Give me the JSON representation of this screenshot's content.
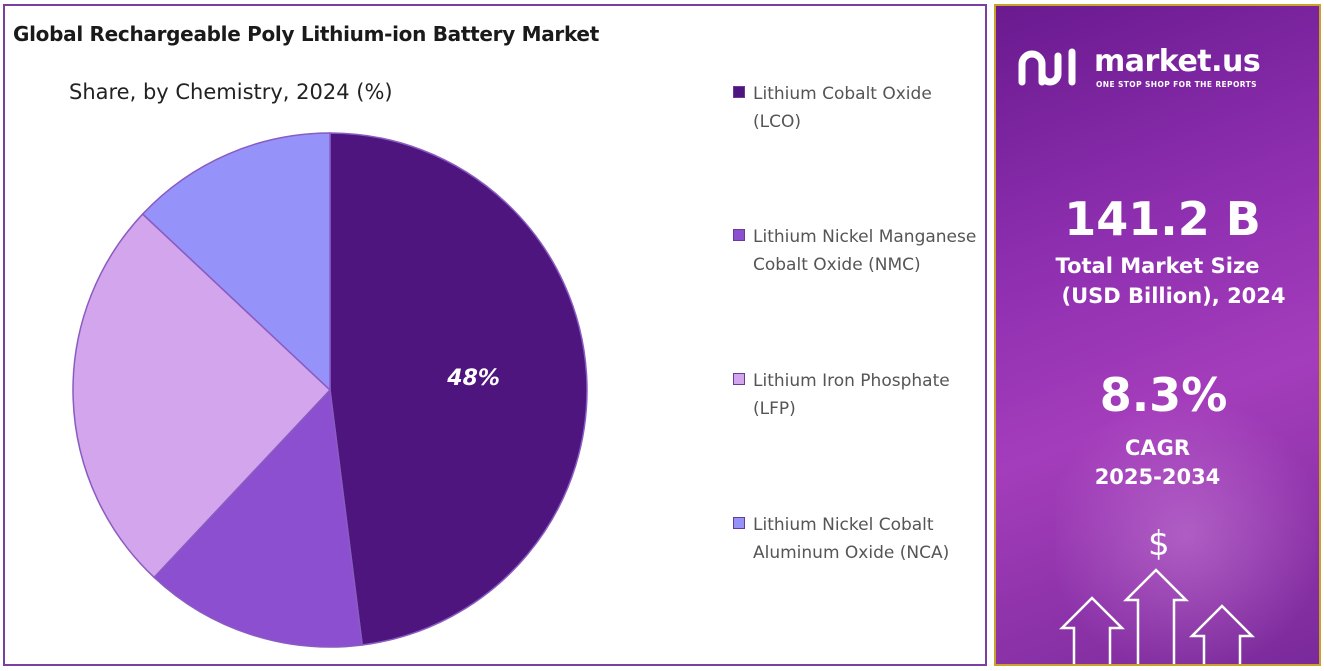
{
  "chart": {
    "title": "Global Rechargeable Poly Lithium-ion Battery Market",
    "subtitle": "Share, by Chemistry, 2024 (%)"
  },
  "chart_data": {
    "type": "pie",
    "title": "Global Rechargeable Poly Lithium-ion Battery Market",
    "subtitle": "Share, by Chemistry, 2024 (%)",
    "slices": [
      {
        "label": "Lithium Cobalt Oxide (LCO)",
        "value": 48,
        "color": "#4e157f",
        "data_label": "48%"
      },
      {
        "label": "Lithium Nickel Manganese Cobalt Oxide (NMC)",
        "value": 14,
        "color": "#8b4fcf",
        "data_label": ""
      },
      {
        "label": "Lithium Iron Phosphate (LFP)",
        "value": 25,
        "color": "#d3a5ec",
        "data_label": ""
      },
      {
        "label": "Lithium Nickel Cobalt Aluminum Oxide (NCA)",
        "value": 13,
        "color": "#9592f9",
        "data_label": ""
      }
    ],
    "legend_position": "right"
  },
  "legend": [
    {
      "label": "Lithium Cobalt Oxide (LCO)",
      "color": "#4e157f"
    },
    {
      "label": "Lithium Nickel Manganese Cobalt Oxide (NMC)",
      "color": "#8b4fcf"
    },
    {
      "label": "Lithium Iron Phosphate (LFP)",
      "color": "#d3a5ec"
    },
    {
      "label": "Lithium Nickel Cobalt Aluminum Oxide (NCA)",
      "color": "#9592f9"
    }
  ],
  "info": {
    "brand": "market.us",
    "tagline": "ONE STOP SHOP FOR THE REPORTS",
    "market_size_value": "141.2 B",
    "market_size_label_line1": "Total Market Size",
    "market_size_label_line2": "(USD Billion), 2024",
    "cagr_value": "8.3%",
    "cagr_label_line1": "CAGR",
    "cagr_label_line2": "2025-2034",
    "dollar_symbol": "$"
  }
}
